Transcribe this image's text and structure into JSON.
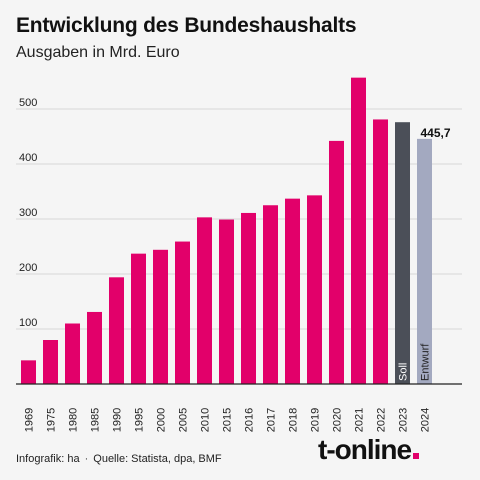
{
  "header": {
    "title": "Entwicklung des Bundeshaushalts",
    "subtitle": "Ausgaben in Mrd. Euro"
  },
  "footer": {
    "credit": "Infografik: ha",
    "separator": "·",
    "source": "Quelle: Statista, dpa, BMF",
    "logo": "t-online"
  },
  "colors": {
    "bar": "#e2006a",
    "soll": "#4b4f58",
    "entwurf": "#a3a9c0",
    "grid": "#d8d8d8",
    "axis": "#222222"
  },
  "chart_data": {
    "type": "bar",
    "categories": [
      "1969",
      "1975",
      "1980",
      "1985",
      "1990",
      "1995",
      "2000",
      "2005",
      "2010",
      "2015",
      "2016",
      "2017",
      "2018",
      "2019",
      "2020",
      "2021",
      "2022",
      "2023",
      "2024"
    ],
    "values": [
      43,
      80,
      110,
      131,
      194,
      237,
      244,
      259,
      303,
      299,
      311,
      325,
      337,
      343,
      442,
      557,
      481,
      476,
      445.7
    ],
    "bar_kinds": [
      "actual",
      "actual",
      "actual",
      "actual",
      "actual",
      "actual",
      "actual",
      "actual",
      "actual",
      "actual",
      "actual",
      "actual",
      "actual",
      "actual",
      "actual",
      "actual",
      "actual",
      "soll",
      "entwurf"
    ],
    "inside_labels": {
      "2023": "Soll",
      "2024": "Entwurf"
    },
    "value_labels": {
      "2024": "445,7"
    },
    "yticks": [
      100,
      200,
      300,
      400,
      500
    ],
    "ylim": [
      0,
      580
    ],
    "grid": true
  }
}
